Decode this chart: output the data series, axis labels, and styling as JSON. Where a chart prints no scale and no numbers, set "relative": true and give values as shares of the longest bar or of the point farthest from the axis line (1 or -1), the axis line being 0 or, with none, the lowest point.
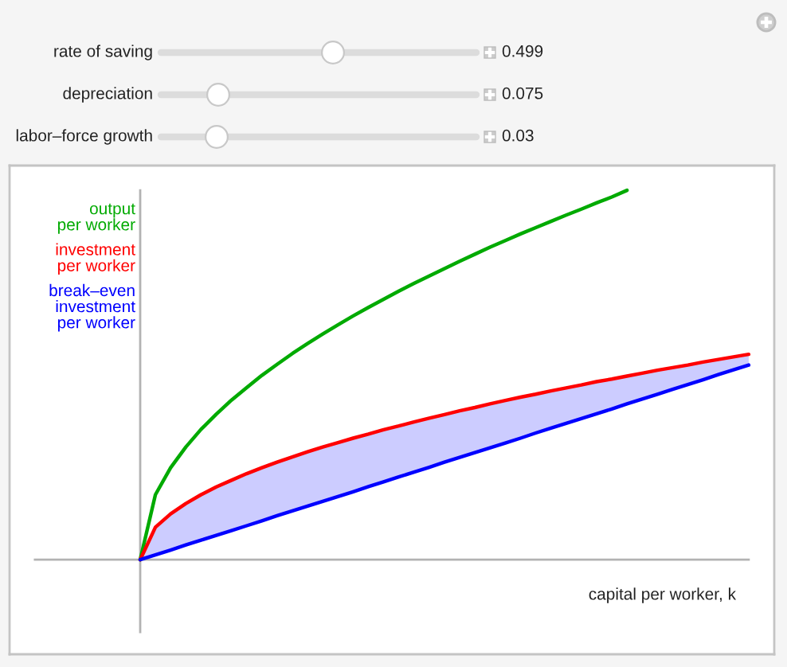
{
  "chart_data": {
    "type": "line",
    "relative": true,
    "legend": "top left",
    "xlabel": "capital per worker, k",
    "annotations": [
      "rate of saving",
      "0.499",
      "depreciation",
      "0.075",
      "labor–force growth",
      "0.03"
    ],
    "categories": [
      null,
      null,
      null,
      null,
      null,
      null,
      null,
      null,
      null,
      null,
      null,
      null,
      null,
      null,
      null,
      null,
      null,
      null,
      null,
      null,
      null,
      null,
      null,
      null,
      null,
      null,
      null,
      null,
      null,
      null,
      null,
      null,
      null,
      null,
      null,
      null,
      null,
      null,
      null,
      null,
      null
    ],
    "series": [
      {
        "name": "output\nper worker",
        "color": "#00aa00",
        "values": [
          0,
          0.176,
          0.249,
          0.305,
          0.353,
          0.394,
          0.432,
          0.466,
          0.499,
          0.529,
          0.558,
          0.585,
          0.611,
          0.636,
          0.66,
          0.683,
          0.705,
          0.727,
          0.748,
          0.768,
          0.788,
          0.808,
          0.827,
          0.846,
          0.864,
          0.882,
          0.899,
          0.916,
          0.933,
          0.949,
          0.966,
          0.982,
          1.0,
          null,
          null,
          null,
          null,
          null,
          null,
          null,
          null
        ]
      },
      {
        "name": "investment\nper worker",
        "color": "#ff0000",
        "values": [
          0,
          0.088,
          0.124,
          0.152,
          0.176,
          0.197,
          0.215,
          0.233,
          0.249,
          0.264,
          0.278,
          0.292,
          0.305,
          0.317,
          0.329,
          0.34,
          0.352,
          0.362,
          0.373,
          0.383,
          0.393,
          0.403,
          0.412,
          0.422,
          0.431,
          0.44,
          0.448,
          0.457,
          0.465,
          0.473,
          0.482,
          0.489,
          0.497,
          0.505,
          0.513,
          0.52,
          0.527,
          0.535,
          0.542,
          0.549,
          0.556
        ]
      },
      {
        "name": "break–even\ninvestment\nper worker",
        "color": "#0000ff",
        "values": [
          0,
          0.013,
          0.026,
          0.04,
          0.053,
          0.066,
          0.079,
          0.092,
          0.105,
          0.119,
          0.132,
          0.145,
          0.158,
          0.171,
          0.184,
          0.198,
          0.211,
          0.224,
          0.237,
          0.25,
          0.264,
          0.277,
          0.29,
          0.303,
          0.316,
          0.329,
          0.343,
          0.356,
          0.369,
          0.382,
          0.395,
          0.408,
          0.422,
          0.435,
          0.448,
          0.461,
          0.474,
          0.487,
          0.501,
          0.514,
          0.527
        ],
        "lower": [
          0,
          0.013,
          0.026,
          0.04,
          0.053,
          0.066,
          0.079,
          0.092,
          0.105,
          0.119,
          0.132,
          0.145,
          0.158,
          0.171,
          0.184,
          0.198,
          0.211,
          0.224,
          0.237,
          0.25,
          0.264,
          0.277,
          0.29,
          0.303,
          0.316,
          0.329,
          0.343,
          0.356,
          0.369,
          0.382,
          0.395,
          0.408,
          0.422,
          0.435,
          0.448,
          0.461,
          0.474,
          0.487,
          0.501,
          0.514,
          0.527
        ],
        "upper": [
          0,
          0.088,
          0.124,
          0.152,
          0.176,
          0.197,
          0.215,
          0.233,
          0.249,
          0.264,
          0.278,
          0.292,
          0.305,
          0.317,
          0.329,
          0.34,
          0.352,
          0.362,
          0.373,
          0.383,
          0.393,
          0.403,
          0.412,
          0.422,
          0.431,
          0.44,
          0.448,
          0.457,
          0.465,
          0.473,
          0.482,
          0.489,
          0.497,
          0.505,
          0.513,
          0.52,
          0.527,
          0.535,
          0.542,
          0.549,
          0.556
        ]
      }
    ]
  }
}
